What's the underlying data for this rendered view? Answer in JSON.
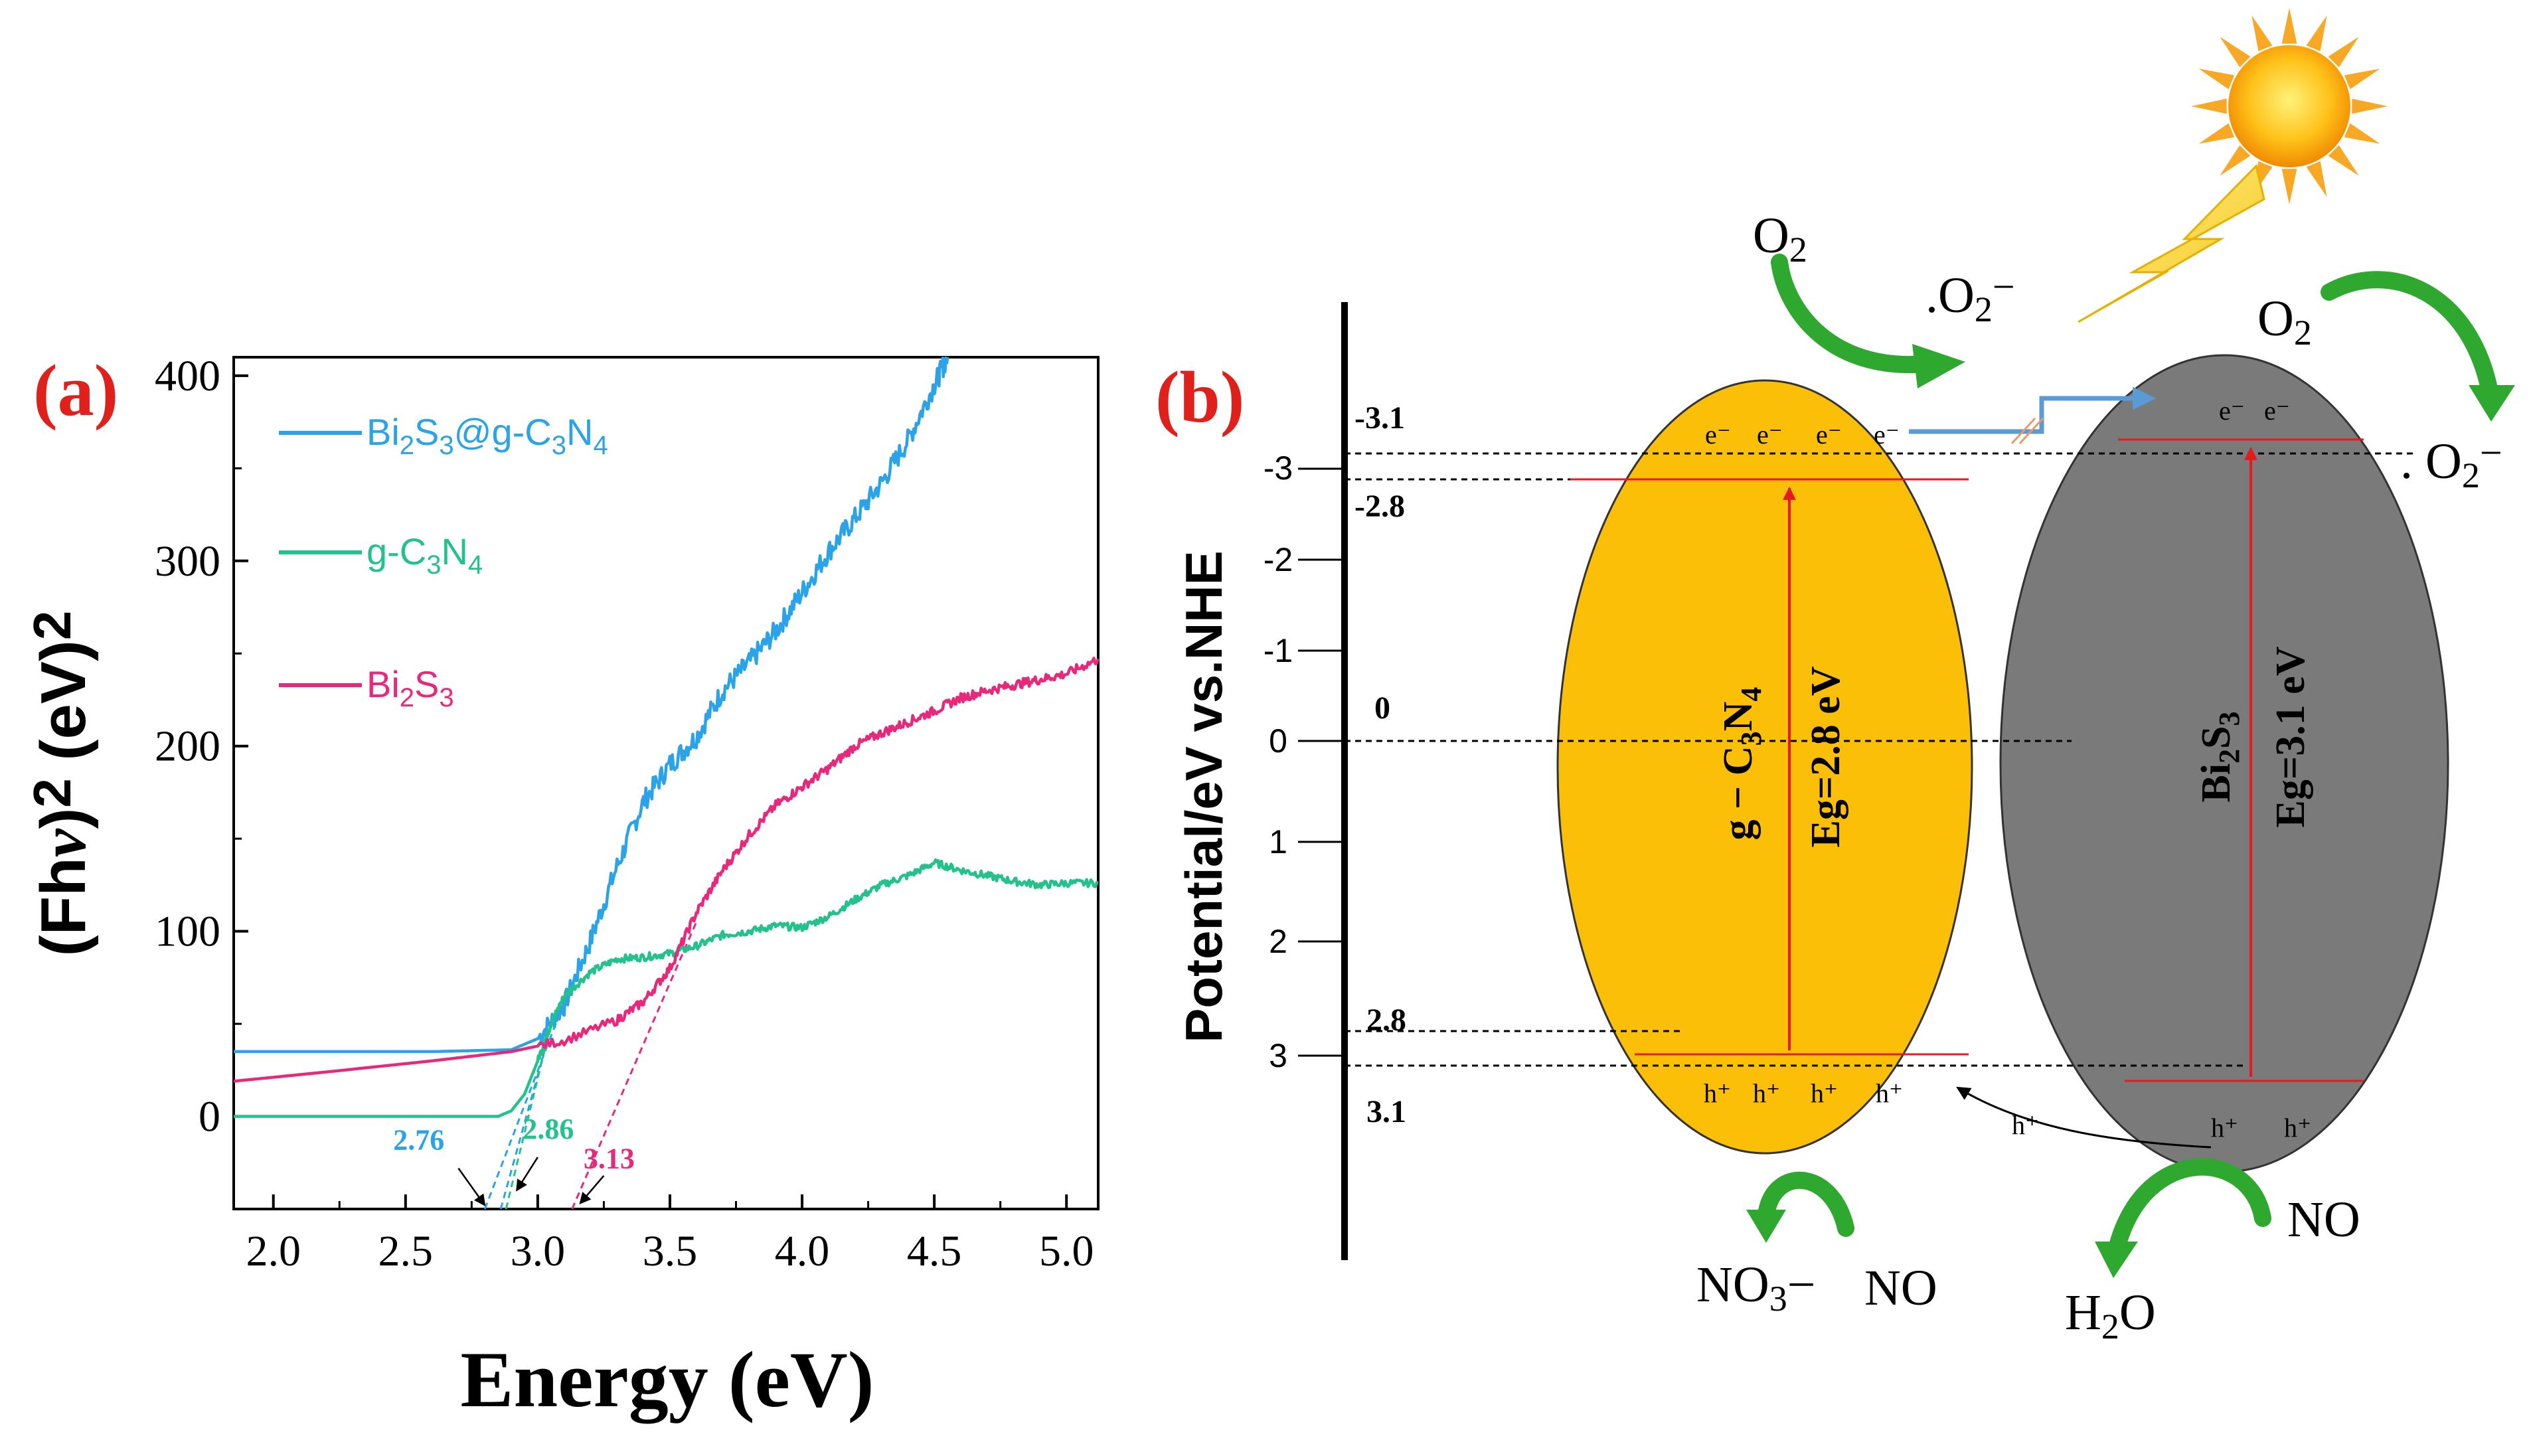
{
  "panel_a": {
    "label": "(a)",
    "label_color": "#e0201b",
    "chart_data": {
      "type": "line",
      "title": "",
      "xlabel": "Energy (eV)",
      "ylabel_parts": [
        "(Fh",
        "ν",
        ")",
        "2",
        " (eV)",
        "2"
      ],
      "xlim": [
        1.85,
        5.12
      ],
      "ylim": [
        -50,
        410
      ],
      "xticks": [
        2.0,
        2.5,
        3.0,
        3.5,
        4.0,
        4.5,
        5.0
      ],
      "xtick_labels": [
        "2.0",
        "2.5",
        "3.0",
        "3.5",
        "4.0",
        "4.5",
        "5.0"
      ],
      "yticks": [
        0,
        100,
        200,
        300,
        400
      ],
      "ytick_labels": [
        "0",
        "100",
        "200",
        "300",
        "400"
      ],
      "grid": false,
      "legend_position": "top-left",
      "series": [
        {
          "name": "Bi2S3@g-C3N4",
          "legend_parts": [
            [
              "Bi",
              ""
            ],
            [
              "2",
              "sub"
            ],
            [
              "S",
              ""
            ],
            [
              "3",
              "sub"
            ],
            [
              "@g-C",
              ""
            ],
            [
              "3",
              "sub"
            ],
            [
              "N",
              ""
            ],
            [
              "4",
              "sub"
            ]
          ],
          "color": "#2aa3e8",
          "x": [
            1.85,
            2.2,
            2.6,
            2.9,
            3.0,
            3.1,
            3.2,
            3.3,
            3.4,
            3.5,
            3.6,
            3.7,
            3.8,
            3.9,
            4.0,
            4.1,
            4.2,
            4.3,
            4.4,
            4.5,
            4.55
          ],
          "y": [
            35,
            35,
            35,
            36,
            42,
            60,
            95,
            135,
            170,
            190,
            205,
            230,
            245,
            262,
            283,
            305,
            323,
            342,
            365,
            395,
            410
          ],
          "noise": 6
        },
        {
          "name": "g-C3N4",
          "legend_parts": [
            [
              "g-C",
              ""
            ],
            [
              "3",
              "sub"
            ],
            [
              "N",
              ""
            ],
            [
              "4",
              "sub"
            ]
          ],
          "color": "#22c28a",
          "x": [
            1.85,
            2.5,
            2.85,
            2.9,
            2.95,
            3.0,
            3.05,
            3.1,
            3.2,
            3.3,
            3.4,
            3.5,
            3.6,
            3.7,
            3.8,
            3.9,
            4.0,
            4.1,
            4.2,
            4.3,
            4.4,
            4.5,
            4.6,
            4.7,
            4.8,
            4.9,
            5.0,
            5.12
          ],
          "y": [
            0,
            0,
            0,
            3,
            12,
            30,
            50,
            65,
            78,
            85,
            86,
            88,
            92,
            98,
            100,
            103,
            102,
            108,
            117,
            125,
            130,
            137,
            133,
            130,
            127,
            125,
            126,
            126
          ],
          "noise": 2
        },
        {
          "name": "Bi2S3",
          "legend_parts": [
            [
              "Bi",
              ""
            ],
            [
              "2",
              "sub"
            ],
            [
              "S",
              ""
            ],
            [
              "3",
              "sub"
            ]
          ],
          "color": "#e8287a",
          "x": [
            1.85,
            2.2,
            2.6,
            2.9,
            3.1,
            3.3,
            3.4,
            3.5,
            3.6,
            3.7,
            3.8,
            3.9,
            4.0,
            4.1,
            4.2,
            4.3,
            4.4,
            4.5,
            4.6,
            4.7,
            4.8,
            4.9,
            5.0,
            5.12
          ],
          "y": [
            19,
            24,
            30,
            35,
            41,
            52,
            62,
            80,
            110,
            133,
            152,
            168,
            178,
            188,
            200,
            207,
            213,
            219,
            226,
            230,
            233,
            236,
            239,
            247
          ],
          "noise": 2.5
        }
      ],
      "tangents": [
        {
          "color": "#2aa3e8",
          "from": [
            2.8,
            -50
          ],
          "to": [
            3.1,
            62
          ]
        },
        {
          "color": "#2aa3e8",
          "from": [
            2.86,
            -50
          ],
          "to": [
            3.05,
            48
          ]
        },
        {
          "color": "#22c28a",
          "from": [
            2.88,
            -50
          ],
          "to": [
            3.05,
            50
          ]
        },
        {
          "color": "#e8287a",
          "from": [
            3.13,
            -50
          ],
          "to": [
            3.6,
            105
          ]
        }
      ],
      "annotations": [
        {
          "text": "2.76",
          "color": "#2aa3e8",
          "x": 2.55,
          "y": -18,
          "arrow_from": [
            2.7,
            -28
          ],
          "arrow_to": [
            2.8,
            -48
          ]
        },
        {
          "text": "2.86",
          "color": "#22c28a",
          "x": 3.04,
          "y": -12,
          "arrow_from": [
            3.0,
            -22
          ],
          "arrow_to": [
            2.92,
            -40
          ]
        },
        {
          "text": "3.13",
          "color": "#e8287a",
          "x": 3.27,
          "y": -28,
          "arrow_from": [
            3.25,
            -32
          ],
          "arrow_to": [
            3.16,
            -47
          ]
        }
      ]
    }
  },
  "panel_b": {
    "label": "(b)",
    "label_color": "#e0201b",
    "axis_title": "Potential/eV vs.NHE",
    "axis_ticks": [
      "-3",
      "-2",
      "-1",
      "0",
      "1",
      "2",
      "3"
    ],
    "level_labels": {
      "cb_top": "-3.1",
      "cb_low": "-2.8",
      "zero": "0",
      "vb_top": "2.8",
      "vb_low": "3.1"
    },
    "colors": {
      "gcn": "#fbbf08",
      "bis": "#7a7a7a",
      "band_line": "#e8181f",
      "arrow_green": "#2fa82f",
      "transfer_arrow": "#5b9bd5",
      "sun": "#f5a623"
    },
    "gcn": {
      "name_parts": [
        [
          "g − C",
          ""
        ],
        [
          "3",
          "sub"
        ],
        [
          "N",
          ""
        ],
        [
          "4",
          "sub"
        ]
      ],
      "gap": "Eg=2.8 eV",
      "electrons": [
        "e⁻",
        "e⁻",
        "e⁻",
        "e⁻"
      ],
      "holes": [
        "h⁺",
        "h⁺",
        "h⁺",
        "h⁺"
      ]
    },
    "bis": {
      "name_parts": [
        [
          "Bi",
          ""
        ],
        [
          "2",
          "sub"
        ],
        [
          "S",
          ""
        ],
        [
          "3",
          "sub"
        ]
      ],
      "gap": "Eg=3.1 eV",
      "electrons": [
        "e⁻",
        "e⁻"
      ],
      "holes": [
        "h⁺",
        "h⁺"
      ]
    },
    "hole_transfer": "h⁺",
    "species": {
      "o2_left": [
        [
          "O",
          ""
        ],
        [
          "2",
          "sub"
        ]
      ],
      "superoxide_left": [
        [
          ".O",
          ""
        ],
        [
          "2",
          "sub"
        ],
        [
          "−",
          "sup"
        ]
      ],
      "o2_right": [
        [
          "O",
          ""
        ],
        [
          "2",
          "sub"
        ]
      ],
      "superoxide_right": [
        [
          ". O",
          ""
        ],
        [
          "2",
          "sub"
        ],
        [
          "−",
          "sup"
        ]
      ],
      "nitrate": [
        [
          "NO",
          ""
        ],
        [
          "3",
          "sub"
        ],
        [
          "−",
          ""
        ]
      ],
      "no_left": [
        [
          "NO",
          ""
        ]
      ],
      "no_right": [
        [
          "NO",
          ""
        ]
      ],
      "water": [
        [
          "H",
          ""
        ],
        [
          "2",
          "sub"
        ],
        [
          "O",
          ""
        ]
      ]
    }
  }
}
